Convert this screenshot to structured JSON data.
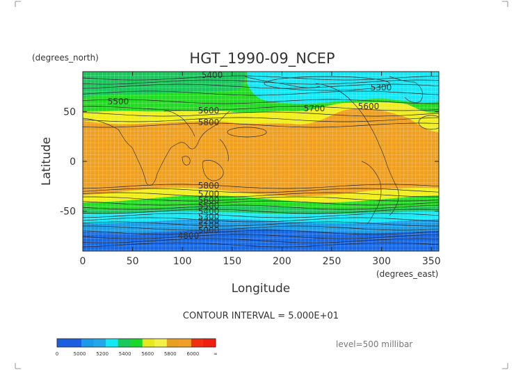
{
  "chart_data": {
    "type": "heatmap",
    "title": "HGT_1990-09_NCEP",
    "xlabel": "Longitude",
    "ylabel": "Latitude",
    "x_units": "(degrees_east)",
    "y_units": "(degrees_north)",
    "xlim": [
      0,
      357.5
    ],
    "ylim": [
      -90,
      90
    ],
    "x_ticks": [
      0,
      50,
      100,
      150,
      200,
      250,
      300,
      350
    ],
    "y_ticks": [
      50,
      0,
      -50
    ],
    "contour_interval_text": "CONTOUR INTERVAL = 5.000E+01",
    "level_text": "level=500 millibar",
    "contour_labels": [
      "5400",
      "5500",
      "5300",
      "5600",
      "5700",
      "5600",
      "5800",
      "5800",
      "5700",
      "5600",
      "5500",
      "5400",
      "5300",
      "5200",
      "5100",
      "5000",
      "4800"
    ],
    "colorbar": {
      "tick_labels": [
        "0",
        "5000",
        "5200",
        "5400",
        "5600",
        "5800",
        "6000",
        "∞"
      ],
      "colors": [
        "#1a5fe0",
        "#1a5fe0",
        "#1a9ae8",
        "#22a8e6",
        "#14e8f2",
        "#19c95a",
        "#1ad82a",
        "#e8e820",
        "#f4f04a",
        "#e8a020",
        "#f0a028",
        "#f03010",
        "#f02010"
      ]
    },
    "band_colors": {
      "deep_blue": "#1668e4",
      "blue": "#1a9be4",
      "cyan": "#16e8f6",
      "green_dark": "#18c85c",
      "green": "#22dc22",
      "yellow": "#f0ee1c",
      "orange": "#f0a020"
    }
  }
}
